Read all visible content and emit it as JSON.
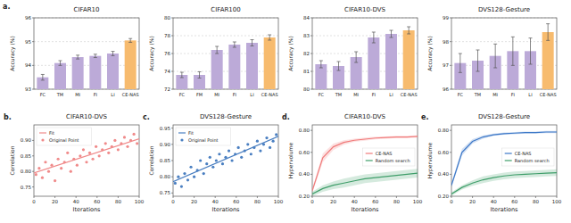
{
  "chart_data": [
    {
      "type": "bar",
      "label": "a.",
      "title": "CIFAR10",
      "y_label": "Accuracy (%)",
      "categories": [
        "FC",
        "TM",
        "MI",
        "FI",
        "LI",
        "CE-NAS"
      ],
      "values": [
        93.5,
        94.1,
        94.35,
        94.4,
        94.5,
        95.05
      ],
      "errors": [
        0.12,
        0.1,
        0.08,
        0.07,
        0.09,
        0.08
      ],
      "colors": [
        "#bcaad8",
        "#bcaad8",
        "#bcaad8",
        "#bcaad8",
        "#bcaad8",
        "#f7bb6e"
      ],
      "ylim": [
        93,
        96
      ],
      "yticks": [
        93,
        94,
        95,
        96
      ],
      "grid": true
    },
    {
      "type": "bar",
      "title": "CIFAR100",
      "y_label": "Accuracy (%)",
      "categories": [
        "FC",
        "FM",
        "MI",
        "FI",
        "LI",
        "CE-NAS"
      ],
      "values": [
        73.6,
        73.6,
        76.4,
        77.0,
        77.2,
        77.8
      ],
      "errors": [
        0.3,
        0.35,
        0.4,
        0.3,
        0.35,
        0.3
      ],
      "colors": [
        "#bcaad8",
        "#bcaad8",
        "#bcaad8",
        "#bcaad8",
        "#bcaad8",
        "#f7bb6e"
      ],
      "ylim": [
        72,
        80
      ],
      "yticks": [
        72,
        74,
        76,
        78,
        80
      ],
      "grid": true
    },
    {
      "type": "bar",
      "title": "CIFAR10-DVS",
      "y_label": "Accuracy (%)",
      "categories": [
        "FC",
        "TM",
        "MI",
        "FI",
        "LI",
        "CE-NAS"
      ],
      "values": [
        81.4,
        81.3,
        81.8,
        82.9,
        83.1,
        83.3
      ],
      "errors": [
        0.2,
        0.25,
        0.3,
        0.3,
        0.2,
        0.2
      ],
      "colors": [
        "#bcaad8",
        "#bcaad8",
        "#bcaad8",
        "#bcaad8",
        "#bcaad8",
        "#f7bb6e"
      ],
      "ylim": [
        80,
        84
      ],
      "yticks": [
        80,
        81,
        82,
        83,
        84
      ],
      "grid": true
    },
    {
      "type": "bar",
      "title": "DVS128-Gesture",
      "y_label": "Accuracy (%)",
      "categories": [
        "FC",
        "TM",
        "MI",
        "FI",
        "LI",
        "CE-NAS"
      ],
      "values": [
        97.1,
        97.2,
        97.4,
        97.6,
        97.6,
        98.4
      ],
      "errors": [
        0.4,
        0.45,
        0.5,
        0.6,
        0.55,
        0.35
      ],
      "colors": [
        "#bcaad8",
        "#bcaad8",
        "#bcaad8",
        "#bcaad8",
        "#bcaad8",
        "#f7bb6e"
      ],
      "ylim": [
        96,
        99
      ],
      "yticks": [
        96,
        97,
        98,
        99
      ],
      "grid": true
    },
    {
      "type": "scatter",
      "label": "b.",
      "title": "CIFAR10-DVS",
      "x_label": "Iterations",
      "y_label": "Correlation",
      "xlim": [
        0,
        100
      ],
      "xticks": [
        0,
        20,
        40,
        60,
        80,
        100
      ],
      "ylim": [
        0.72,
        0.95
      ],
      "yticks": [
        0.75,
        {
          "value": 0.8,
          "label": "0.80"
        },
        0.85,
        {
          "value": 0.9,
          "label": "0.90"
        }
      ],
      "legend": "upper left",
      "series": [
        {
          "name": "Fit",
          "type": "line",
          "color": "#f08a8a",
          "x": [
            0,
            100
          ],
          "values": [
            0.795,
            0.905
          ]
        },
        {
          "name": "Original Point",
          "type": "scatter",
          "color": "#f08a8a",
          "x": [
            2,
            5,
            8,
            11,
            14,
            17,
            20,
            23,
            26,
            29,
            32,
            35,
            38,
            41,
            44,
            47,
            50,
            53,
            56,
            59,
            62,
            65,
            68,
            71,
            74,
            77,
            80,
            83,
            86,
            89,
            92,
            95,
            98
          ],
          "values": [
            0.79,
            0.81,
            0.78,
            0.83,
            0.8,
            0.82,
            0.77,
            0.84,
            0.81,
            0.83,
            0.86,
            0.8,
            0.84,
            0.82,
            0.85,
            0.87,
            0.83,
            0.86,
            0.84,
            0.88,
            0.85,
            0.87,
            0.89,
            0.86,
            0.88,
            0.9,
            0.87,
            0.89,
            0.91,
            0.88,
            0.9,
            0.92,
            0.89
          ]
        }
      ]
    },
    {
      "type": "scatter",
      "label": "c.",
      "title": "DVS128-Gesture",
      "x_label": "Iterations",
      "y_label": "Correlation",
      "xlim": [
        0,
        100
      ],
      "xticks": [
        0,
        20,
        40,
        60,
        80,
        100
      ],
      "ylim": [
        0.74,
        0.96
      ],
      "yticks": [
        0.75,
        {
          "value": 0.8,
          "label": "0.80"
        },
        0.85,
        {
          "value": 0.9,
          "label": "0.90"
        },
        0.95
      ],
      "legend": "upper left",
      "series": [
        {
          "name": "Fit",
          "type": "line",
          "color": "#4a7fc1",
          "x": [
            0,
            100
          ],
          "values": [
            0.785,
            0.925
          ]
        },
        {
          "name": "Original Point",
          "type": "scatter",
          "color": "#4a7fc1",
          "x": [
            2,
            5,
            8,
            11,
            14,
            17,
            20,
            23,
            26,
            29,
            32,
            35,
            38,
            41,
            44,
            47,
            50,
            53,
            56,
            59,
            62,
            65,
            68,
            71,
            74,
            77,
            80,
            83,
            86,
            89,
            92,
            95,
            98
          ],
          "values": [
            0.78,
            0.8,
            0.77,
            0.81,
            0.79,
            0.83,
            0.8,
            0.82,
            0.85,
            0.81,
            0.84,
            0.86,
            0.83,
            0.85,
            0.87,
            0.84,
            0.86,
            0.88,
            0.85,
            0.87,
            0.89,
            0.86,
            0.88,
            0.9,
            0.87,
            0.89,
            0.91,
            0.88,
            0.9,
            0.92,
            0.89,
            0.91,
            0.93
          ]
        }
      ]
    },
    {
      "type": "line",
      "label": "d.",
      "title": "CIFAR10-DVS",
      "x_label": "Iterations",
      "y_label": "Hypervolume",
      "xlim": [
        0,
        100
      ],
      "xticks": [
        0,
        20,
        40,
        60,
        80,
        100
      ],
      "ylim": [
        0.2,
        0.85
      ],
      "yticks": [
        {
          "value": 0.2,
          "label": "0.20"
        },
        {
          "value": 0.4,
          "label": "0.40"
        },
        {
          "value": 0.6,
          "label": "0.60"
        },
        {
          "value": 0.8,
          "label": "0.80"
        }
      ],
      "legend": "center right",
      "series": [
        {
          "name": "CE-NAS",
          "color": "#f07b7b",
          "x": [
            0,
            10,
            20,
            30,
            40,
            50,
            60,
            70,
            80,
            90,
            100
          ],
          "values": [
            0.25,
            0.55,
            0.65,
            0.69,
            0.71,
            0.72,
            0.73,
            0.735,
            0.74,
            0.74,
            0.745
          ],
          "error": [
            0.02,
            0.04,
            0.03,
            0.02,
            0.015,
            0.015,
            0.012,
            0.01,
            0.01,
            0.01,
            0.01
          ]
        },
        {
          "name": "Random search",
          "color": "#3f9e6a",
          "x": [
            0,
            10,
            20,
            30,
            40,
            50,
            60,
            70,
            80,
            90,
            100
          ],
          "values": [
            0.22,
            0.27,
            0.3,
            0.32,
            0.34,
            0.36,
            0.37,
            0.38,
            0.39,
            0.4,
            0.41
          ],
          "error": [
            0.02,
            0.03,
            0.035,
            0.04,
            0.04,
            0.04,
            0.04,
            0.04,
            0.04,
            0.04,
            0.04
          ]
        }
      ]
    },
    {
      "type": "line",
      "label": "e.",
      "title": "DVS128-Gesture",
      "x_label": "Iterations",
      "y_label": "Hypervolume",
      "xlim": [
        0,
        100
      ],
      "xticks": [
        0,
        20,
        40,
        60,
        80,
        100
      ],
      "ylim": [
        0.2,
        0.85
      ],
      "yticks": [
        {
          "value": 0.2,
          "label": "0.20"
        },
        {
          "value": 0.4,
          "label": "0.40"
        },
        {
          "value": 0.6,
          "label": "0.60"
        },
        {
          "value": 0.8,
          "label": "0.80"
        }
      ],
      "legend": "center right",
      "series": [
        {
          "name": "CE-NAS",
          "color": "#3c78c8",
          "x": [
            0,
            10,
            20,
            30,
            40,
            50,
            60,
            70,
            80,
            90,
            100
          ],
          "values": [
            0.3,
            0.6,
            0.7,
            0.74,
            0.76,
            0.77,
            0.775,
            0.78,
            0.78,
            0.785,
            0.785
          ],
          "error": [
            0.02,
            0.03,
            0.02,
            0.015,
            0.01,
            0.01,
            0.01,
            0.01,
            0.01,
            0.01,
            0.01
          ]
        },
        {
          "name": "Random search",
          "color": "#3f9e6a",
          "x": [
            0,
            10,
            20,
            30,
            40,
            50,
            60,
            70,
            80,
            90,
            100
          ],
          "values": [
            0.22,
            0.28,
            0.32,
            0.35,
            0.37,
            0.385,
            0.395,
            0.4,
            0.405,
            0.41,
            0.415
          ],
          "error": [
            0.015,
            0.02,
            0.025,
            0.03,
            0.03,
            0.03,
            0.03,
            0.03,
            0.03,
            0.03,
            0.03
          ]
        }
      ]
    }
  ]
}
